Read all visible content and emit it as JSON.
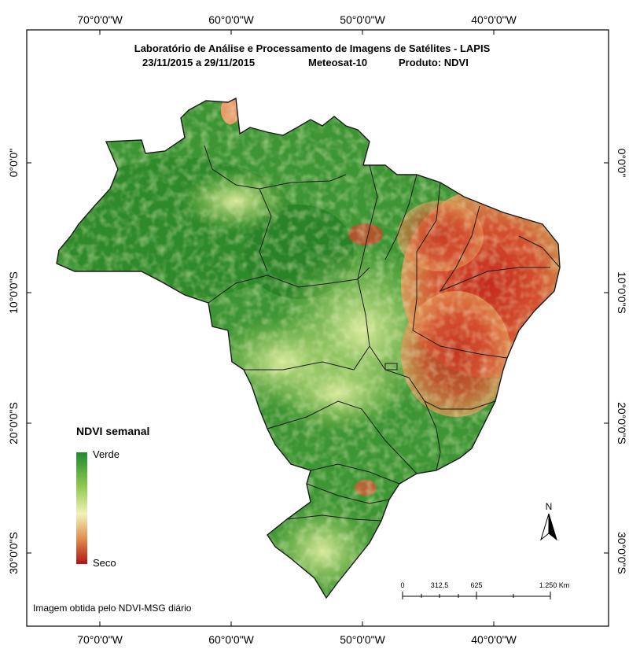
{
  "header": {
    "line1": "Laboratório de Análise e Processamento de Imagens de Satélites - LAPIS",
    "date_range": "23/11/2015  a 29/11/2015",
    "satellite": "Meteosat-10",
    "product": "Produto: NDVI"
  },
  "graticule": {
    "lon_labels": [
      "70°0'0\"W",
      "60°0'0\"W",
      "50°0'0\"W",
      "40°0'0\"W"
    ],
    "lat_labels": [
      "0°0'0\"",
      "10°0'0\"S",
      "20°0'0\"S",
      "30°0'0\"S"
    ]
  },
  "legend": {
    "title": "NDVI semanal",
    "high_label": "Verde",
    "low_label": "Seco",
    "colors": [
      "#1e8a2e",
      "#8cc84e",
      "#f3f2b8",
      "#e08a4e",
      "#b01515"
    ]
  },
  "north_arrow": {
    "label": "N"
  },
  "scale_bar": {
    "labels": [
      "0",
      "312,5",
      "625",
      "1.250 Km"
    ]
  },
  "footer_note": "Imagem obtida pelo NDVI-MSG diário",
  "colors": {
    "dense": "#2f8f2a",
    "mid": "#76b544",
    "light": "#c9e08a",
    "dry": "#d2452e",
    "border": "#222222"
  }
}
